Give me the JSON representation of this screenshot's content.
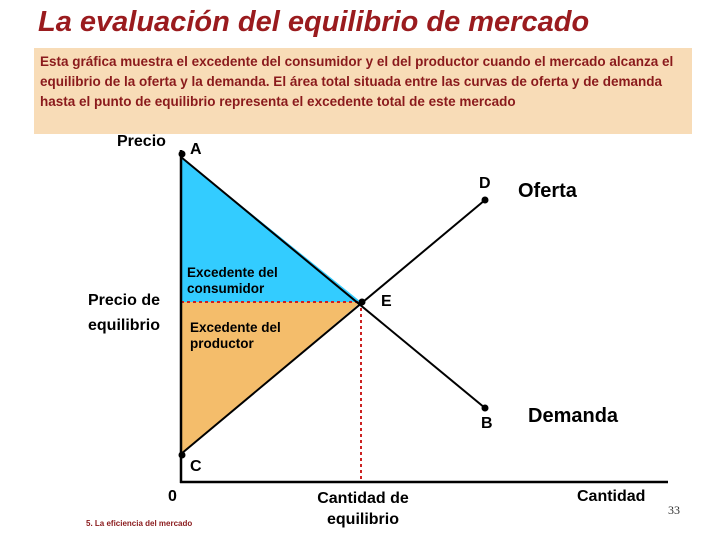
{
  "title": "La evaluación del equilibrio de mercado",
  "description": "Esta gráfica muestra el excedente del consumidor y el del productor cuando el mercado alcanza el equilibrio de la oferta y la demanda. El área total situada entre las curvas de oferta y de demanda hasta el punto de equilibrio representa el excedente total de este mercado",
  "axes": {
    "y_label": "Precio",
    "x_label": "Cantidad",
    "origin": "0"
  },
  "points": {
    "A": "A",
    "B": "B",
    "C": "C",
    "D": "D",
    "E": "E"
  },
  "curves": {
    "supply": "Oferta",
    "demand": "Demanda"
  },
  "regions": {
    "consumer_surplus_line1": "Excedente del",
    "consumer_surplus_line2": "consumidor",
    "producer_surplus_line1": "Excedente del",
    "producer_surplus_line2": "productor"
  },
  "equilibrium": {
    "price_line1": "Precio de",
    "price_line2": "equilibrio",
    "quantity_line1": "Cantidad de",
    "quantity_line2": "equilibrio"
  },
  "colors": {
    "consumer_surplus": "#33ccff",
    "producer_surplus": "#f4bd6b",
    "equilibrium_lines": "#cc2222",
    "title": "#9a1b1e",
    "note_background": "#f8dcb7"
  },
  "footer": "5. La eficiencia del mercado",
  "page_number": "33"
}
